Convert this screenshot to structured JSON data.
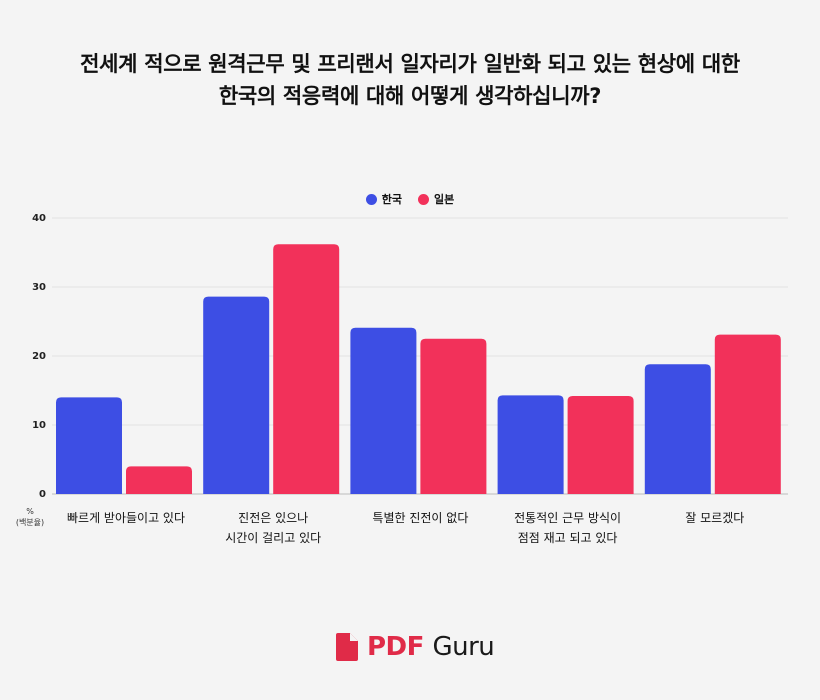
{
  "title_lines": [
    "전세계 적으로 원격근무 및 프리랜서 일자리가 일반화 되고 있는 현상에 대한",
    "한국의 적응력에 대해 어떻게 생각하십니까?"
  ],
  "axis_unit": [
    "%",
    "(백분율)"
  ],
  "logo": {
    "pdf": "PDF",
    "guru": "Guru"
  },
  "colors": {
    "korea": "#3d4ee4",
    "japan": "#f2315a",
    "grid": "#e2e2e2",
    "logo_red": "#e02b48"
  },
  "chart_data": {
    "type": "bar",
    "title": "전세계 적으로 원격근무 및 프리랜서 일자리가 일반화 되고 있는 현상에 대한 한국의 적응력에 대해 어떻게 생각하십니까?",
    "ylabel": "% (백분율)",
    "ylim": [
      0,
      40
    ],
    "yticks": [
      0,
      10,
      20,
      30,
      40
    ],
    "grid": true,
    "legend_position": "top-center",
    "categories": [
      [
        "빠르게 받아들이고 있다"
      ],
      [
        "진전은 있으나",
        "시간이 걸리고 있다"
      ],
      [
        "특별한 진전이 없다"
      ],
      [
        "전통적인 근무 방식이",
        "점점 재고 되고 있다"
      ],
      [
        "잘 모르겠다"
      ]
    ],
    "series": [
      {
        "name": "한국",
        "color": "#3d4ee4",
        "values": [
          14,
          28.6,
          24.1,
          14.3,
          18.8
        ]
      },
      {
        "name": "일본",
        "color": "#f2315a",
        "values": [
          4,
          36.2,
          22.5,
          14.2,
          23.1
        ]
      }
    ]
  }
}
